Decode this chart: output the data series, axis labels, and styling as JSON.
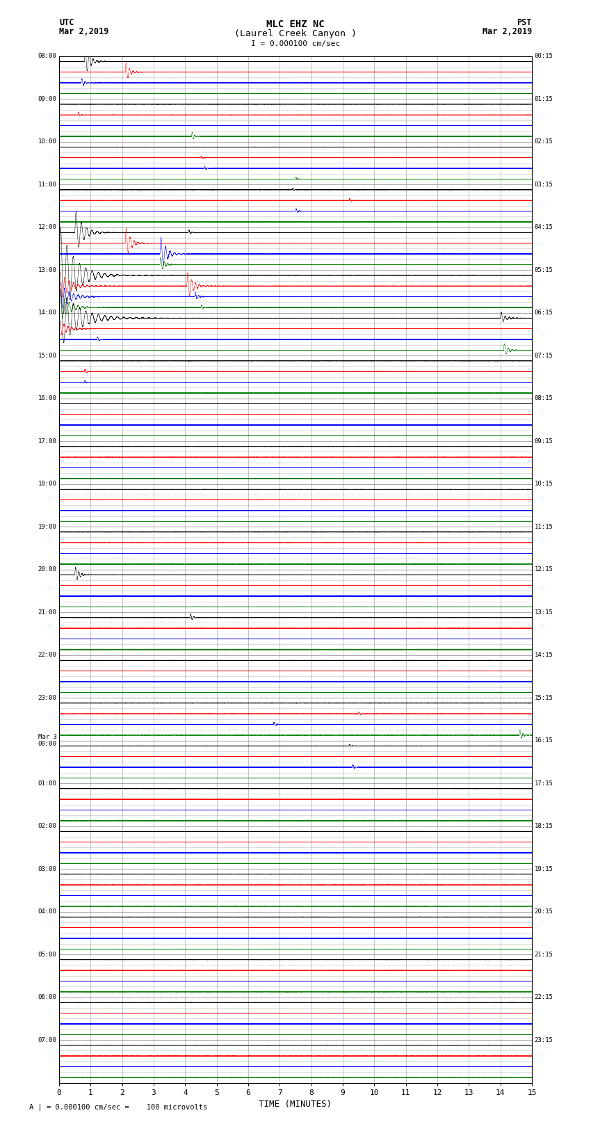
{
  "title_line1": "MLC EHZ NC",
  "title_line2": "(Laurel Creek Canyon )",
  "scale_label": "I = 0.000100 cm/sec",
  "utc_label": "UTC",
  "utc_date": "Mar 2,2019",
  "pst_label": "PST",
  "pst_date": "Mar 2,2019",
  "bottom_label": "A | = 0.000100 cm/sec =    100 microvolts",
  "xlabel": "TIME (MINUTES)",
  "xlim": [
    0,
    15
  ],
  "xticks": [
    0,
    1,
    2,
    3,
    4,
    5,
    6,
    7,
    8,
    9,
    10,
    11,
    12,
    13,
    14,
    15
  ],
  "num_hours": 24,
  "traces_per_hour": 4,
  "trace_duration_minutes": 15,
  "sample_rate": 100,
  "background_color": "#ffffff",
  "grid_color": "#888888",
  "figwidth": 8.5,
  "figheight": 16.13,
  "left_times_utc": [
    "08:00",
    "09:00",
    "10:00",
    "11:00",
    "12:00",
    "13:00",
    "14:00",
    "15:00",
    "16:00",
    "17:00",
    "18:00",
    "19:00",
    "20:00",
    "21:00",
    "22:00",
    "23:00",
    "Mar 3\n00:00",
    "01:00",
    "02:00",
    "03:00",
    "04:00",
    "05:00",
    "06:00",
    "07:00"
  ],
  "right_times_pst": [
    "00:15",
    "01:15",
    "02:15",
    "03:15",
    "04:15",
    "05:15",
    "06:15",
    "07:15",
    "08:15",
    "09:15",
    "10:15",
    "11:15",
    "12:15",
    "13:15",
    "14:15",
    "15:15",
    "16:15",
    "17:15",
    "18:15",
    "19:15",
    "20:15",
    "21:15",
    "22:15",
    "23:15"
  ],
  "trace_colors": [
    "black",
    "red",
    "blue",
    "green"
  ],
  "noise_amplitude": 0.018,
  "events": [
    {
      "hour": 1,
      "sub": 3,
      "t_min": 4.2,
      "amp": 1.2,
      "dur": 0.25,
      "freq": 12
    },
    {
      "hour": 4,
      "sub": 0,
      "t_min": 4.1,
      "amp": 0.8,
      "dur": 0.2,
      "freq": 10
    },
    {
      "hour": 5,
      "sub": 1,
      "t_min": 4.05,
      "amp": 3.5,
      "dur": 0.6,
      "freq": 8
    },
    {
      "hour": 5,
      "sub": 2,
      "t_min": 4.3,
      "amp": 1.2,
      "dur": 0.3,
      "freq": 10
    },
    {
      "hour": 5,
      "sub": 3,
      "t_min": 4.5,
      "amp": 0.7,
      "dur": 0.2,
      "freq": 12
    },
    {
      "hour": 6,
      "sub": 3,
      "t_min": 14.1,
      "amp": 1.8,
      "dur": 0.4,
      "freq": 8
    },
    {
      "hour": 6,
      "sub": 0,
      "t_min": 14.0,
      "amp": 1.5,
      "dur": 0.5,
      "freq": 8
    },
    {
      "hour": 12,
      "sub": 0,
      "t_min": 0.5,
      "amp": 2.0,
      "dur": 0.4,
      "freq": 10
    },
    {
      "hour": 13,
      "sub": 0,
      "t_min": 4.15,
      "amp": 1.0,
      "dur": 0.3,
      "freq": 10
    },
    {
      "hour": 15,
      "sub": 1,
      "t_min": 9.5,
      "amp": 0.6,
      "dur": 0.15,
      "freq": 12
    },
    {
      "hour": 15,
      "sub": 3,
      "t_min": 14.6,
      "amp": 1.5,
      "dur": 0.3,
      "freq": 10
    },
    {
      "hour": 16,
      "sub": 0,
      "t_min": 9.2,
      "amp": 0.5,
      "dur": 0.12,
      "freq": 12
    },
    {
      "hour": 16,
      "sub": 2,
      "t_min": 9.3,
      "amp": 0.8,
      "dur": 0.2,
      "freq": 10
    },
    {
      "hour": 15,
      "sub": 2,
      "t_min": 6.8,
      "amp": 0.7,
      "dur": 0.2,
      "freq": 10
    },
    {
      "hour": 0,
      "sub": 0,
      "t_min": 0.8,
      "amp": 4.0,
      "dur": 0.5,
      "freq": 8
    },
    {
      "hour": 0,
      "sub": 1,
      "t_min": 2.1,
      "amp": 2.5,
      "dur": 0.4,
      "freq": 9
    },
    {
      "hour": 0,
      "sub": 2,
      "t_min": 0.7,
      "amp": 1.2,
      "dur": 0.3,
      "freq": 10
    },
    {
      "hour": 1,
      "sub": 1,
      "t_min": 0.6,
      "amp": 0.8,
      "dur": 0.2,
      "freq": 10
    },
    {
      "hour": 2,
      "sub": 1,
      "t_min": 4.5,
      "amp": 0.5,
      "dur": 0.2,
      "freq": 12
    },
    {
      "hour": 2,
      "sub": 2,
      "t_min": 4.6,
      "amp": 0.6,
      "dur": 0.2,
      "freq": 12
    },
    {
      "hour": 3,
      "sub": 1,
      "t_min": 9.2,
      "amp": 0.6,
      "dur": 0.15,
      "freq": 12
    },
    {
      "hour": 4,
      "sub": 0,
      "t_min": 0.5,
      "amp": 5.5,
      "dur": 0.8,
      "freq": 6
    },
    {
      "hour": 4,
      "sub": 1,
      "t_min": 2.1,
      "amp": 4.0,
      "dur": 0.5,
      "freq": 8
    },
    {
      "hour": 4,
      "sub": 2,
      "t_min": 3.2,
      "amp": 4.5,
      "dur": 0.6,
      "freq": 7
    },
    {
      "hour": 4,
      "sub": 3,
      "t_min": 3.2,
      "amp": 2.0,
      "dur": 0.4,
      "freq": 9
    },
    {
      "hour": 5,
      "sub": 0,
      "t_min": 0.0,
      "amp": 12.0,
      "dur": 1.5,
      "freq": 5
    },
    {
      "hour": 5,
      "sub": 1,
      "t_min": 0.0,
      "amp": 3.5,
      "dur": 1.0,
      "freq": 7
    },
    {
      "hour": 5,
      "sub": 2,
      "t_min": 0.0,
      "amp": 3.5,
      "dur": 1.0,
      "freq": 7
    },
    {
      "hour": 5,
      "sub": 3,
      "t_min": 0.0,
      "amp": 3.5,
      "dur": 1.0,
      "freq": 7
    },
    {
      "hour": 6,
      "sub": 0,
      "t_min": 0.0,
      "amp": 7.0,
      "dur": 2.0,
      "freq": 5
    },
    {
      "hour": 6,
      "sub": 1,
      "t_min": 0.0,
      "amp": 2.0,
      "dur": 0.8,
      "freq": 8
    },
    {
      "hour": 6,
      "sub": 2,
      "t_min": 1.2,
      "amp": 0.8,
      "dur": 0.2,
      "freq": 10
    },
    {
      "hour": 7,
      "sub": 1,
      "t_min": 0.8,
      "amp": 0.7,
      "dur": 0.2,
      "freq": 10
    },
    {
      "hour": 3,
      "sub": 2,
      "t_min": 7.5,
      "amp": 0.8,
      "dur": 0.2,
      "freq": 10
    },
    {
      "hour": 2,
      "sub": 3,
      "t_min": 7.5,
      "amp": 0.6,
      "dur": 0.15,
      "freq": 12
    },
    {
      "hour": 3,
      "sub": 0,
      "t_min": 7.4,
      "amp": 0.5,
      "dur": 0.15,
      "freq": 12
    },
    {
      "hour": 7,
      "sub": 2,
      "t_min": 0.8,
      "amp": 0.5,
      "dur": 0.15,
      "freq": 12
    }
  ]
}
